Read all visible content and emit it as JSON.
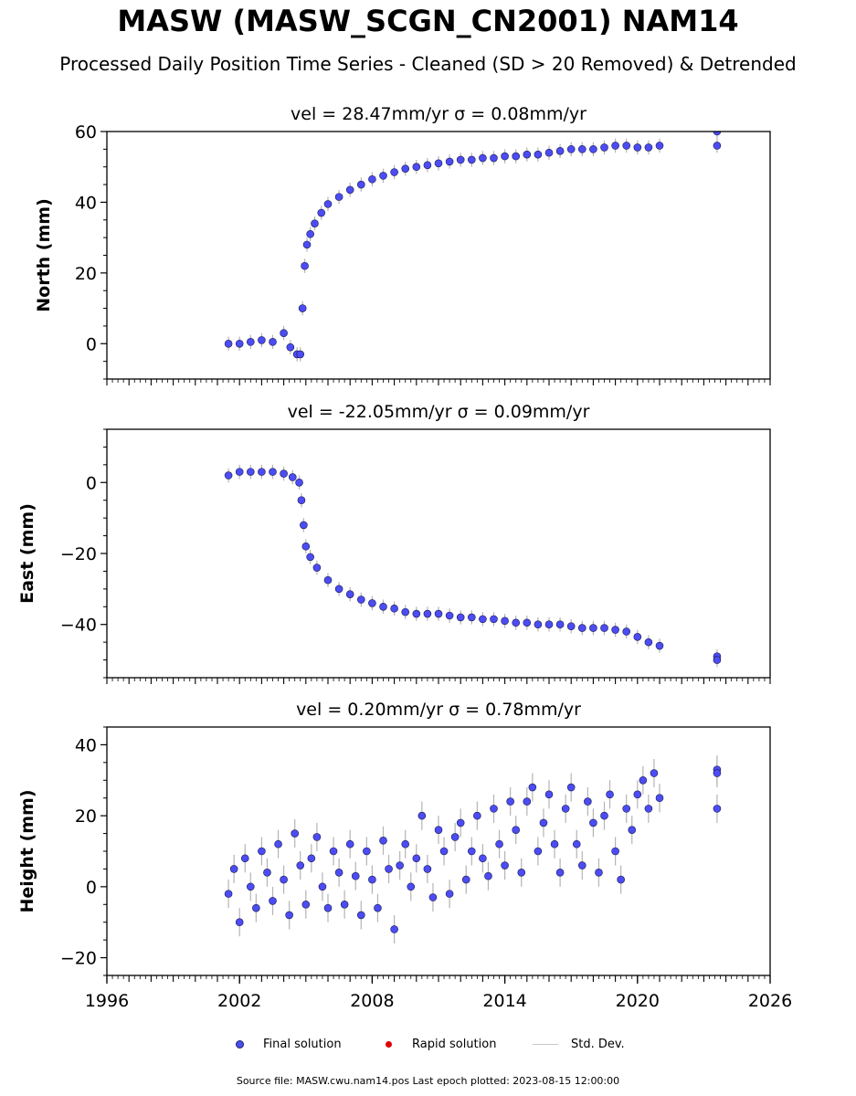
{
  "title": "MASW (MASW_SCGN_CN2001) NAM14",
  "subtitle": "Processed Daily Position Time Series - Cleaned (SD > 20 Removed) & Detrended",
  "footer": "Source file: MASW.cwu.nam14.pos  Last epoch plotted: 2023-08-15 12:00:00",
  "legend": {
    "final": "Final solution",
    "rapid": "Rapid solution",
    "std": "Std. Dev."
  },
  "colors": {
    "final": "#4c4cf5",
    "final_edge": "#1a1a4a",
    "rapid": "#e00000",
    "std": "#b4b4b4"
  },
  "chart_data": [
    {
      "type": "scatter",
      "title": "vel = 28.47mm/yr   σ = 0.08mm/yr",
      "ylabel": "North (mm)",
      "xlim": [
        1996,
        2026
      ],
      "ylim": [
        -10,
        60
      ],
      "yticks": [
        "0",
        "20",
        "40",
        "60"
      ],
      "ytick_values": [
        0,
        20,
        40,
        60
      ],
      "series": [
        {
          "name": "Final solution",
          "x": [
            2001.5,
            2002.0,
            2002.5,
            2003.0,
            2003.5,
            2004.0,
            2004.3,
            2004.6,
            2004.75,
            2004.85,
            2004.95,
            2005.05,
            2005.2,
            2005.4,
            2005.7,
            2006.0,
            2006.5,
            2007.0,
            2007.5,
            2008.0,
            2008.5,
            2009.0,
            2009.5,
            2010.0,
            2010.5,
            2011.0,
            2011.5,
            2012.0,
            2012.5,
            2013.0,
            2013.5,
            2014.0,
            2014.5,
            2015.0,
            2015.5,
            2016.0,
            2016.5,
            2017.0,
            2017.5,
            2018.0,
            2018.5,
            2019.0,
            2019.5,
            2020.0,
            2020.5,
            2021.0,
            2023.6,
            2023.6
          ],
          "y": [
            0,
            0,
            0.5,
            1,
            0.5,
            3,
            -1,
            -3,
            -3,
            10,
            22,
            28,
            31,
            34,
            37,
            39.5,
            41.5,
            43.5,
            45,
            46.5,
            47.5,
            48.5,
            49.5,
            50,
            50.5,
            51,
            51.5,
            52,
            52,
            52.5,
            52.5,
            53,
            53,
            53.5,
            53.5,
            54,
            54.5,
            55,
            55,
            55,
            55.5,
            56,
            56,
            55.5,
            55.5,
            56,
            60,
            56
          ],
          "sd": [
            2,
            2,
            2,
            2,
            2,
            2,
            2,
            2,
            2,
            2,
            2,
            2,
            2,
            2,
            2,
            2,
            2,
            2,
            2,
            2,
            2,
            2,
            2,
            2,
            2,
            2,
            2,
            2,
            2,
            2,
            2,
            2,
            2,
            2,
            2,
            2,
            2,
            2,
            2,
            2,
            2,
            2,
            2,
            2,
            2,
            2,
            2,
            2
          ]
        }
      ]
    },
    {
      "type": "scatter",
      "title": "vel = -22.05mm/yr   σ = 0.09mm/yr",
      "ylabel": "East (mm)",
      "xlim": [
        1996,
        2026
      ],
      "ylim": [
        -55,
        15
      ],
      "yticks": [
        "0",
        "−20",
        "−40"
      ],
      "ytick_values": [
        0,
        -20,
        -40
      ],
      "series": [
        {
          "name": "Final solution",
          "x": [
            2001.5,
            2002.0,
            2002.5,
            2003.0,
            2003.5,
            2004.0,
            2004.4,
            2004.7,
            2004.8,
            2004.9,
            2005.0,
            2005.2,
            2005.5,
            2006.0,
            2006.5,
            2007.0,
            2007.5,
            2008.0,
            2008.5,
            2009.0,
            2009.5,
            2010.0,
            2010.5,
            2011.0,
            2011.5,
            2012.0,
            2012.5,
            2013.0,
            2013.5,
            2014.0,
            2014.5,
            2015.0,
            2015.5,
            2016.0,
            2016.5,
            2017.0,
            2017.5,
            2018.0,
            2018.5,
            2019.0,
            2019.5,
            2020.0,
            2020.5,
            2021.0,
            2023.6,
            2023.6
          ],
          "y": [
            2,
            3,
            3,
            3,
            3,
            2.5,
            1.5,
            0,
            -5,
            -12,
            -18,
            -21,
            -24,
            -27.5,
            -30,
            -31.5,
            -33,
            -34,
            -35,
            -35.5,
            -36.5,
            -37,
            -37,
            -37,
            -37.5,
            -38,
            -38,
            -38.5,
            -38.5,
            -39,
            -39.5,
            -39.5,
            -40,
            -40,
            -40,
            -40.5,
            -41,
            -41,
            -41,
            -41.5,
            -42,
            -43.5,
            -45,
            -46,
            -49,
            -50
          ],
          "sd": [
            2,
            2,
            2,
            2,
            2,
            2,
            2,
            2,
            2,
            2,
            2,
            2,
            2,
            2,
            2,
            2,
            2,
            2,
            2,
            2,
            2,
            2,
            2,
            2,
            2,
            2,
            2,
            2,
            2,
            2,
            2,
            2,
            2,
            2,
            2,
            2,
            2,
            2,
            2,
            2,
            2,
            2,
            2,
            2,
            2,
            2
          ]
        }
      ]
    },
    {
      "type": "scatter",
      "title": "vel = 0.20mm/yr   σ = 0.78mm/yr",
      "ylabel": "Height (mm)",
      "xlim": [
        1996,
        2026
      ],
      "ylim": [
        -25,
        45
      ],
      "yticks": [
        "−20",
        "0",
        "20",
        "40"
      ],
      "ytick_values": [
        -20,
        0,
        20,
        40
      ],
      "xticks": [
        "1996",
        "2002",
        "2008",
        "2014",
        "2020",
        "2026"
      ],
      "xtick_values": [
        1996,
        2002,
        2008,
        2014,
        2020,
        2026
      ],
      "series": [
        {
          "name": "Final solution",
          "x": [
            2001.5,
            2001.75,
            2002.0,
            2002.25,
            2002.5,
            2002.75,
            2003.0,
            2003.25,
            2003.5,
            2003.75,
            2004.0,
            2004.25,
            2004.5,
            2004.75,
            2005.0,
            2005.25,
            2005.5,
            2005.75,
            2006.0,
            2006.25,
            2006.5,
            2006.75,
            2007.0,
            2007.25,
            2007.5,
            2007.75,
            2008.0,
            2008.25,
            2008.5,
            2008.75,
            2009.0,
            2009.25,
            2009.5,
            2009.75,
            2010.0,
            2010.25,
            2010.5,
            2010.75,
            2011.0,
            2011.25,
            2011.5,
            2011.75,
            2012.0,
            2012.25,
            2012.5,
            2012.75,
            2013.0,
            2013.25,
            2013.5,
            2013.75,
            2014.0,
            2014.25,
            2014.5,
            2014.75,
            2015.0,
            2015.25,
            2015.5,
            2015.75,
            2016.0,
            2016.25,
            2016.5,
            2016.75,
            2017.0,
            2017.25,
            2017.5,
            2017.75,
            2018.0,
            2018.25,
            2018.5,
            2018.75,
            2019.0,
            2019.25,
            2019.5,
            2019.75,
            2020.0,
            2020.25,
            2020.5,
            2020.75,
            2021.0,
            2023.6,
            2023.6,
            2023.6
          ],
          "y": [
            -2,
            5,
            -10,
            8,
            0,
            -6,
            10,
            4,
            -4,
            12,
            2,
            -8,
            15,
            6,
            -5,
            8,
            14,
            0,
            -6,
            10,
            4,
            -5,
            12,
            3,
            -8,
            10,
            2,
            -6,
            13,
            5,
            -12,
            6,
            12,
            0,
            8,
            20,
            5,
            -3,
            16,
            10,
            -2,
            14,
            18,
            2,
            10,
            20,
            8,
            3,
            22,
            12,
            6,
            24,
            16,
            4,
            24,
            28,
            10,
            18,
            26,
            12,
            4,
            22,
            28,
            12,
            6,
            24,
            18,
            4,
            20,
            26,
            10,
            2,
            22,
            16,
            26,
            30,
            22,
            32,
            25,
            33,
            32,
            22
          ],
          "sd": [
            4,
            4,
            4,
            4,
            4,
            4,
            4,
            4,
            4,
            4,
            4,
            4,
            4,
            4,
            4,
            4,
            4,
            4,
            4,
            4,
            4,
            4,
            4,
            4,
            4,
            4,
            4,
            4,
            4,
            4,
            4,
            4,
            4,
            4,
            4,
            4,
            4,
            4,
            4,
            4,
            4,
            4,
            4,
            4,
            4,
            4,
            4,
            4,
            4,
            4,
            4,
            4,
            4,
            4,
            4,
            4,
            4,
            4,
            4,
            4,
            4,
            4,
            4,
            4,
            4,
            4,
            4,
            4,
            4,
            4,
            4,
            4,
            4,
            4,
            4,
            4,
            4,
            4,
            4,
            4,
            4,
            4
          ]
        }
      ]
    }
  ]
}
